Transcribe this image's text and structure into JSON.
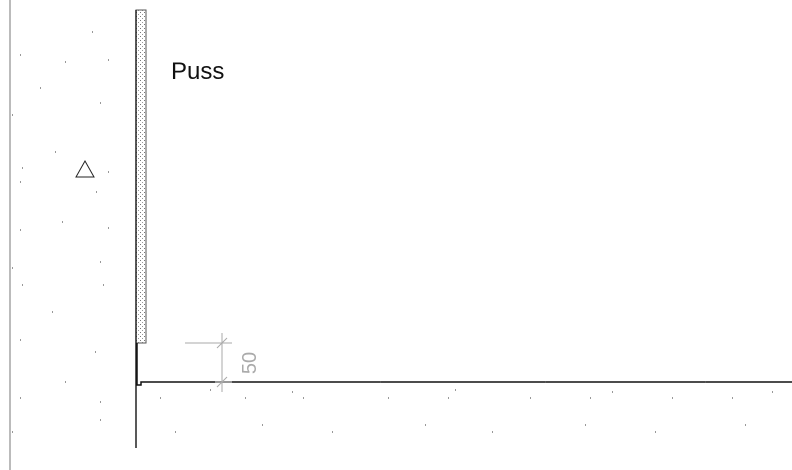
{
  "drawing": {
    "material_label": "Puss",
    "dimension": 50
  }
}
